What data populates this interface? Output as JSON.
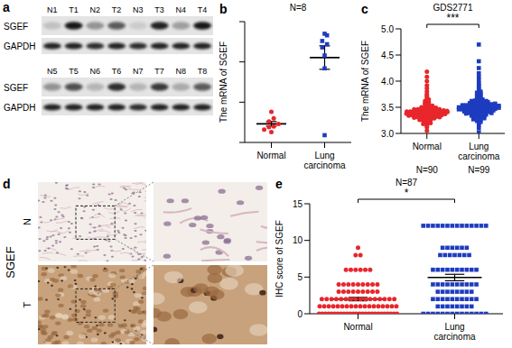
{
  "chart_data": [
    {
      "panel": "b",
      "type": "scatter",
      "title": "N=8",
      "y_label": "The mRNA of SGEF",
      "ylim": [
        0,
        15
      ],
      "yticks": [
        0,
        5,
        10,
        15
      ],
      "tick_labels": "x",
      "series": [
        {
          "name": "Normal",
          "color": "#e8262b",
          "marker": "circle",
          "values": [
            1.3,
            1.6,
            1.9,
            2.0,
            2.3,
            2.6,
            3.0,
            3.8
          ],
          "mean": 2.31,
          "sem": 0.29
        },
        {
          "name": "Lung carcinoma",
          "color": "#1d3cbf",
          "marker": "square",
          "values": [
            0.9,
            9.2,
            10.8,
            11.8,
            12.2,
            12.6,
            13.3,
            13.5
          ],
          "mean": 10.54,
          "sem": 1.46
        }
      ]
    },
    {
      "panel": "c",
      "type": "scatter",
      "title": "GDS2771",
      "y_label": "The mRNA of SGEF",
      "annotation": "***",
      "ylim": [
        3,
        5
      ],
      "yticks": [
        {
          "value": 3,
          "label": "3.0"
        },
        {
          "value": 3.5,
          "label": "3.5"
        },
        {
          "value": 4,
          "label": "4.0"
        },
        {
          "value": 4.5,
          "label": "4.5"
        },
        {
          "value": 5,
          "label": "5.0"
        }
      ],
      "series": [
        {
          "name": "Normal",
          "n_label": "N=90",
          "color": "#e8262b",
          "marker": "circle",
          "values": [
            3.05,
            3.12,
            3.18,
            3.21,
            3.24,
            3.26,
            3.28,
            3.29,
            3.3,
            3.31,
            3.32,
            3.33,
            3.33,
            3.34,
            3.35,
            3.35,
            3.36,
            3.36,
            3.37,
            3.37,
            3.38,
            3.38,
            3.38,
            3.39,
            3.39,
            3.39,
            3.4,
            3.4,
            3.4,
            3.4,
            3.41,
            3.41,
            3.41,
            3.42,
            3.42,
            3.42,
            3.43,
            3.43,
            3.43,
            3.44,
            3.44,
            3.45,
            3.45,
            3.46,
            3.46,
            3.47,
            3.47,
            3.48,
            3.48,
            3.49,
            3.15,
            3.2,
            3.22,
            3.25,
            3.27,
            3.3,
            3.32,
            3.34,
            3.36,
            3.38,
            3.4,
            3.42,
            3.44,
            3.46,
            3.5,
            3.51,
            3.52,
            3.53,
            3.55,
            3.57,
            3.58,
            3.6,
            3.62,
            3.35,
            3.37,
            3.39,
            3.41,
            3.43,
            3.31,
            3.29,
            3.65,
            3.68,
            3.72,
            3.75,
            3.8,
            3.86,
            3.92,
            4.0,
            4.08,
            4.18
          ],
          "mean": 3.44,
          "sem": 0.02
        },
        {
          "name": "Lung carcinoma",
          "n_label": "N=99",
          "color": "#1d3cbf",
          "marker": "square",
          "values": [
            3.02,
            3.1,
            3.16,
            3.2,
            3.24,
            3.27,
            3.3,
            3.32,
            3.34,
            3.36,
            3.37,
            3.38,
            3.39,
            3.4,
            3.41,
            3.42,
            3.43,
            3.44,
            3.45,
            3.46,
            3.46,
            3.47,
            3.47,
            3.48,
            3.48,
            3.49,
            3.49,
            3.5,
            3.5,
            3.51,
            3.51,
            3.52,
            3.52,
            3.53,
            3.53,
            3.54,
            3.54,
            3.55,
            3.55,
            3.56,
            3.56,
            3.57,
            3.58,
            3.59,
            3.6,
            3.61,
            3.62,
            3.63,
            3.64,
            3.65,
            3.66,
            3.68,
            3.7,
            3.72,
            3.74,
            3.76,
            3.78,
            3.8,
            3.84,
            3.88,
            3.28,
            3.31,
            3.33,
            3.35,
            3.38,
            3.4,
            3.42,
            3.44,
            3.46,
            3.48,
            3.5,
            3.52,
            3.54,
            3.56,
            3.58,
            3.6,
            3.62,
            3.45,
            3.47,
            3.49,
            3.92,
            3.96,
            4.02,
            4.08,
            4.15,
            4.25,
            4.38,
            4.7,
            3.22,
            3.26,
            3.29,
            3.36,
            3.41,
            3.43,
            3.51,
            3.53,
            3.57,
            3.39,
            3.44
          ],
          "mean": 3.54,
          "sem": 0.02
        }
      ]
    },
    {
      "panel": "e",
      "type": "scatter",
      "title": "N=87",
      "y_label": "IHC score of SGEF",
      "annotation": "*",
      "ylim": [
        0,
        15
      ],
      "yticks": [
        0,
        5,
        10,
        15
      ],
      "series": [
        {
          "name": "Normal",
          "color": "#e8262b",
          "marker": "circle",
          "values": [
            0,
            0,
            0,
            0,
            0,
            0,
            0,
            0,
            0,
            0,
            0,
            0,
            0,
            0,
            0,
            0,
            0,
            0,
            0,
            0,
            0,
            0,
            0,
            0,
            0,
            0,
            1,
            1,
            1,
            1,
            1,
            1,
            1,
            1,
            1,
            1,
            1,
            1,
            1,
            1,
            1,
            1,
            1,
            1,
            2,
            2,
            2,
            2,
            2,
            2,
            2,
            2,
            2,
            2,
            2,
            2,
            2,
            2,
            2,
            2,
            3,
            3,
            3,
            3,
            3,
            3,
            3,
            3,
            3,
            4,
            4,
            4,
            4,
            4,
            4,
            4,
            4,
            4,
            6,
            6,
            6,
            6,
            6,
            6,
            8,
            8,
            9
          ],
          "mean": 2.0,
          "sem": 0.23
        },
        {
          "name": "Lung carcinoma",
          "color": "#1d3cbf",
          "marker": "square",
          "values": [
            0,
            0,
            0,
            0,
            0,
            0,
            0,
            0,
            0,
            0,
            0,
            0,
            0,
            0,
            1,
            1,
            1,
            1,
            1,
            1,
            1,
            1,
            2,
            2,
            2,
            2,
            2,
            2,
            2,
            2,
            2,
            2,
            3,
            3,
            3,
            3,
            3,
            3,
            3,
            3,
            4,
            4,
            4,
            4,
            4,
            4,
            4,
            4,
            4,
            4,
            6,
            6,
            6,
            6,
            6,
            6,
            6,
            6,
            6,
            6,
            8,
            8,
            8,
            8,
            8,
            8,
            8,
            9,
            9,
            9,
            9,
            9,
            9,
            12,
            12,
            12,
            12,
            12,
            12,
            12,
            12,
            12,
            12,
            12,
            12,
            12,
            12
          ],
          "mean": 4.94,
          "sem": 0.44
        }
      ]
    }
  ],
  "blot": {
    "panel": "a",
    "rows": [
      "SGEF",
      "GAPDH"
    ],
    "blocks": [
      {
        "lanes": [
          "N1",
          "T1",
          "N2",
          "T2",
          "N3",
          "T3",
          "N4",
          "T4"
        ],
        "bands": {
          "SGEF": [
            0.15,
            0.9,
            0.35,
            0.6,
            0.1,
            0.85,
            0.3,
            0.9
          ],
          "GAPDH": [
            0.85,
            0.85,
            0.8,
            0.85,
            0.8,
            0.85,
            0.85,
            0.85
          ]
        }
      },
      {
        "lanes": [
          "N5",
          "T5",
          "N6",
          "T6",
          "N7",
          "T7",
          "N8",
          "T8"
        ],
        "bands": {
          "SGEF": [
            0.35,
            0.65,
            0.2,
            0.8,
            0.2,
            0.75,
            0.25,
            0.6
          ],
          "GAPDH": [
            0.85,
            0.85,
            0.85,
            0.85,
            0.8,
            0.85,
            0.85,
            0.85
          ]
        }
      }
    ]
  },
  "ihc": {
    "panel": "d",
    "stain": "SGEF",
    "rows": [
      "N",
      "T"
    ]
  }
}
